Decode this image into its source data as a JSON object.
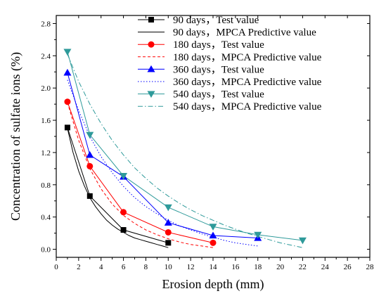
{
  "chart_data": {
    "type": "line",
    "xlabel": "Erosion depth (mm)",
    "ylabel": "Concentration of sulfate ions (%)",
    "xlim": [
      0,
      28
    ],
    "ylim": [
      -0.1,
      2.9
    ],
    "xticks": [
      0,
      2,
      4,
      6,
      8,
      10,
      12,
      14,
      16,
      18,
      20,
      22,
      24,
      26,
      28
    ],
    "yticks": [
      0.0,
      0.4,
      0.8,
      1.2,
      1.6,
      2.0,
      2.4,
      2.8
    ],
    "ytick_labels": [
      "0.0",
      "0.4",
      "0.8",
      "1.2",
      "1.6",
      "2.0",
      "2.4",
      "2.8"
    ],
    "grid": false,
    "legend_position": "top-right",
    "series": [
      {
        "name": "90 days，Test value",
        "kind": "test",
        "marker": "square",
        "color": "#000000",
        "x": [
          1,
          3,
          6,
          10
        ],
        "y": [
          1.51,
          0.66,
          0.24,
          0.08
        ]
      },
      {
        "name": "90 days，MPCA Predictive value",
        "kind": "predictive",
        "dash": "solid",
        "color": "#000000",
        "x": [
          1,
          1.5,
          2,
          2.5,
          3,
          3.5,
          4,
          4.5,
          5,
          5.5,
          6,
          6.5,
          7,
          7.5,
          8,
          8.5,
          9,
          9.5,
          10
        ],
        "y": [
          1.5,
          1.2,
          0.97,
          0.79,
          0.64,
          0.53,
          0.44,
          0.36,
          0.3,
          0.25,
          0.21,
          0.17,
          0.14,
          0.12,
          0.1,
          0.08,
          0.06,
          0.04,
          0.02
        ]
      },
      {
        "name": "180 days，Test value",
        "kind": "test",
        "marker": "circle",
        "color": "#ff0000",
        "x": [
          1,
          3,
          6,
          10,
          14
        ],
        "y": [
          1.83,
          1.03,
          0.46,
          0.21,
          0.08
        ]
      },
      {
        "name": "180 days，MPCA Predictive value",
        "kind": "predictive",
        "dash": "dash",
        "color": "#ff0000",
        "x": [
          1,
          2,
          3,
          4,
          5,
          6,
          7,
          8,
          9,
          10,
          11,
          12,
          13,
          14
        ],
        "y": [
          1.82,
          1.35,
          1.0,
          0.75,
          0.56,
          0.42,
          0.32,
          0.24,
          0.18,
          0.13,
          0.09,
          0.06,
          0.04,
          0.02
        ]
      },
      {
        "name": "360 days，Test value",
        "kind": "test",
        "marker": "triangle-up",
        "color": "#0000ff",
        "x": [
          1,
          3,
          6,
          10,
          14,
          18
        ],
        "y": [
          2.19,
          1.17,
          0.9,
          0.33,
          0.17,
          0.14
        ]
      },
      {
        "name": "360 days，MPCA Predictive value",
        "kind": "predictive",
        "dash": "dot",
        "color": "#0000ff",
        "x": [
          1,
          2,
          3,
          4,
          5,
          6,
          7,
          8,
          9,
          10,
          11,
          12,
          13,
          14,
          15,
          16,
          17,
          18
        ],
        "y": [
          2.1,
          1.72,
          1.4,
          1.15,
          0.95,
          0.78,
          0.64,
          0.53,
          0.44,
          0.36,
          0.29,
          0.24,
          0.19,
          0.15,
          0.11,
          0.08,
          0.06,
          0.04
        ]
      },
      {
        "name": "540 days，Test value",
        "kind": "test",
        "marker": "triangle-down",
        "color": "#2e9a9a",
        "x": [
          1,
          3,
          6,
          10,
          14,
          18,
          22
        ],
        "y": [
          2.45,
          1.42,
          0.91,
          0.52,
          0.28,
          0.18,
          0.11
        ]
      },
      {
        "name": "540 days，MPCA Predictive value",
        "kind": "predictive",
        "dash": "dashdot",
        "color": "#2e9a9a",
        "x": [
          1,
          2,
          3,
          4,
          5,
          6,
          7,
          8,
          9,
          10,
          11,
          12,
          13,
          14,
          15,
          16,
          17,
          18,
          19,
          20,
          21,
          22
        ],
        "y": [
          2.42,
          2.08,
          1.8,
          1.56,
          1.35,
          1.17,
          1.01,
          0.88,
          0.76,
          0.66,
          0.57,
          0.49,
          0.42,
          0.36,
          0.3,
          0.25,
          0.2,
          0.16,
          0.12,
          0.08,
          0.05,
          0.02
        ]
      }
    ]
  }
}
